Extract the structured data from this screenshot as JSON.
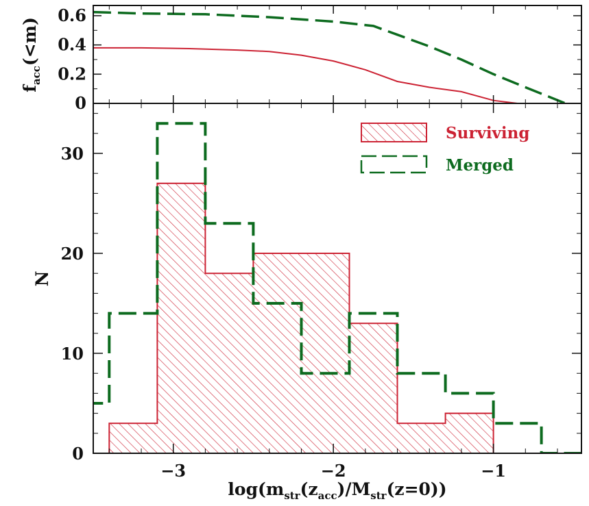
{
  "chart_data": [
    {
      "type": "line",
      "ylabel_main": "f",
      "ylabel_sub": "acc",
      "ylabel_tail": "(<m)",
      "xlim": [
        -3.5,
        -0.45
      ],
      "ylim": [
        0,
        0.67
      ],
      "yticks": [
        0,
        0.2,
        0.4,
        0.6
      ],
      "ytick_labels": [
        "0",
        "0.2",
        "0.4",
        "0.6"
      ],
      "series": [
        {
          "color": "#cc2233",
          "dash": "solid",
          "x": [
            -3.5,
            -3.2,
            -2.9,
            -2.6,
            -2.4,
            -2.2,
            -2.0,
            -1.8,
            -1.6,
            -1.4,
            -1.2,
            -1.0,
            -0.85,
            -0.45
          ],
          "y": [
            0.38,
            0.38,
            0.375,
            0.365,
            0.355,
            0.33,
            0.29,
            0.23,
            0.15,
            0.11,
            0.08,
            0.02,
            0.0,
            0.0
          ]
        },
        {
          "color": "#0d6b1f",
          "dash": "long-dash",
          "x": [
            -3.5,
            -3.2,
            -2.8,
            -2.4,
            -2.0,
            -1.75,
            -1.6,
            -1.4,
            -1.2,
            -1.0,
            -0.8,
            -0.55
          ],
          "y": [
            0.625,
            0.615,
            0.61,
            0.59,
            0.56,
            0.53,
            0.47,
            0.39,
            0.3,
            0.2,
            0.11,
            0.0
          ]
        }
      ]
    },
    {
      "type": "bar",
      "histogram": true,
      "xlabel_parts": [
        "log(m",
        "str",
        "(z",
        "acc",
        ")/M",
        "str",
        "(z=0))"
      ],
      "ylabel": "N",
      "xlim": [
        -3.5,
        -0.45
      ],
      "ylim": [
        0,
        35
      ],
      "xticks": [
        -3,
        -2,
        -1
      ],
      "xtick_labels": [
        "−3",
        "−2",
        "−1"
      ],
      "yticks": [
        0,
        10,
        20,
        30
      ],
      "ytick_labels": [
        "0",
        "10",
        "20",
        "30"
      ],
      "bin_edges": [
        -3.7,
        -3.4,
        -3.1,
        -2.8,
        -2.5,
        -2.2,
        -1.9,
        -1.6,
        -1.3,
        -1.0,
        -0.7,
        -0.4
      ],
      "series": [
        {
          "name": "Surviving",
          "color": "#cc2233",
          "style": "hatched",
          "values": [
            0,
            3,
            27,
            18,
            20,
            20,
            13,
            3,
            4,
            0,
            0
          ]
        },
        {
          "name": "Merged",
          "color": "#0d6b1f",
          "style": "dashed-outline",
          "values": [
            5,
            14,
            33,
            23,
            15,
            8,
            14,
            8,
            6,
            3,
            0
          ]
        }
      ],
      "legend_position": "top-right"
    }
  ]
}
